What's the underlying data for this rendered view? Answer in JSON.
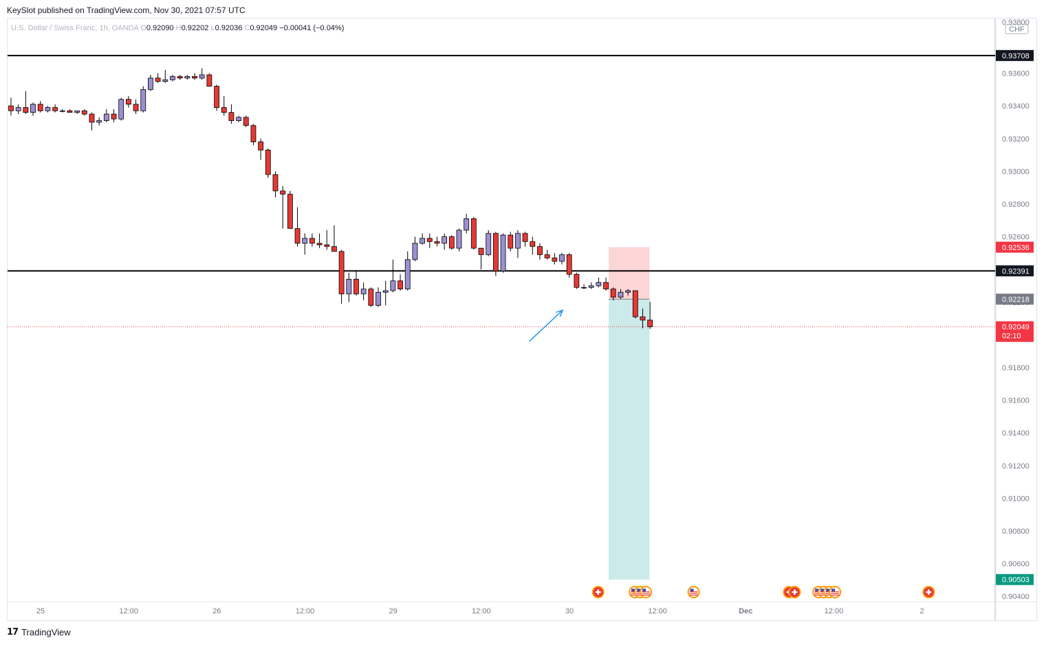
{
  "header": {
    "publisher_text": "KeySlot published on TradingView.com, Nov 30, 2021 07:57 UTC"
  },
  "legend": {
    "symbol": "U.S. Dollar / Swiss Franc, 1h, OANDA",
    "o_label": "O",
    "open": "0.92090",
    "h_label": "H",
    "high": "0.92202",
    "l_label": "L",
    "low": "0.92036",
    "c_label": "C",
    "close": "0.92049",
    "change": "−0.00041 (−0.04%)"
  },
  "footer": {
    "brand": "TradingView",
    "logo_glyph": "17"
  },
  "colors": {
    "up": "#9c8fd1",
    "down": "#e53935",
    "arrow": "#2196f3",
    "stop_zone": "#fcd5d6",
    "target_zone": "#cbeae9",
    "grid_line": "#e0e3eb"
  },
  "chart_data": {
    "type": "candlestick",
    "currency_label": "CHF",
    "ylim": [
      0.904,
      0.939
    ],
    "y_ticks": [
      "0.93600",
      "0.93400",
      "0.93200",
      "0.93000",
      "0.92800",
      "0.92600",
      "0.92400",
      "0.92200",
      "0.92000",
      "0.91800",
      "0.91600",
      "0.91400",
      "0.91200",
      "0.91000",
      "0.90800",
      "0.90600",
      "0.90400"
    ],
    "y_tick_values": [
      0.936,
      0.934,
      0.932,
      0.93,
      0.928,
      0.926,
      0.924,
      0.922,
      0.92,
      0.918,
      0.916,
      0.914,
      0.912,
      0.91,
      0.908,
      0.906,
      0.904
    ],
    "top_partial_tick": "0.93800",
    "x_ticks": [
      {
        "label": "25",
        "slot": 0
      },
      {
        "label": "12:00",
        "slot": 12
      },
      {
        "label": "26",
        "slot": 24
      },
      {
        "label": "12:00",
        "slot": 36
      },
      {
        "label": "29",
        "slot": 48
      },
      {
        "label": "12:00",
        "slot": 60
      },
      {
        "label": "30",
        "slot": 72
      },
      {
        "label": "12:00",
        "slot": 84
      },
      {
        "label": "Dec",
        "slot": 96
      },
      {
        "label": "12:00",
        "slot": 108
      },
      {
        "label": "2",
        "slot": 120
      }
    ],
    "horizontal_lines": [
      {
        "price": 0.93708,
        "label": "0.93708"
      },
      {
        "price": 0.92391,
        "label": "0.92391"
      }
    ],
    "price_labels": [
      {
        "price": 0.92536,
        "label": "0.92536",
        "color": "#f23645"
      },
      {
        "price": 0.92391,
        "label": "0.92391",
        "color": "#131722"
      },
      {
        "price": 0.92218,
        "label": "0.92218",
        "color": "#787b86"
      },
      {
        "price": 0.92049,
        "label": "0.92049",
        "sub": "02:10",
        "color": "#f23645"
      },
      {
        "price": 0.90503,
        "label": "0.90503",
        "color": "#089981"
      }
    ],
    "last_price": 0.92049,
    "position": {
      "entry": 0.92218,
      "stop": 0.92536,
      "target": 0.90503,
      "from_slot": 81,
      "to_slot": 86
    },
    "arrow": {
      "from_slot": 70,
      "from_price": 0.9196,
      "to_slot": 75,
      "to_price": 0.9215
    },
    "events": [
      {
        "slot": 79,
        "flags": [
          "CHF"
        ]
      },
      {
        "slot": 84,
        "flags": [
          "USD",
          "USD",
          "USD"
        ]
      },
      {
        "slot": 92,
        "flags": [
          "USD"
        ]
      },
      {
        "slot": 105,
        "flags": [
          "CHF",
          "CHF"
        ]
      },
      {
        "slot": 109,
        "flags": [
          "USD",
          "USD",
          "USD",
          "USD"
        ]
      },
      {
        "slot": 124,
        "flags": [
          "CHF"
        ]
      }
    ],
    "candles": [
      {
        "o": 0.934,
        "h": 0.9345,
        "l": 0.9334,
        "c": 0.9337
      },
      {
        "o": 0.9337,
        "h": 0.9341,
        "l": 0.9335,
        "c": 0.9339
      },
      {
        "o": 0.9339,
        "h": 0.9349,
        "l": 0.9335,
        "c": 0.9336
      },
      {
        "o": 0.9336,
        "h": 0.9342,
        "l": 0.9334,
        "c": 0.9341
      },
      {
        "o": 0.9341,
        "h": 0.9343,
        "l": 0.9336,
        "c": 0.9337
      },
      {
        "o": 0.9337,
        "h": 0.934,
        "l": 0.9336,
        "c": 0.9339
      },
      {
        "o": 0.9339,
        "h": 0.9341,
        "l": 0.9336,
        "c": 0.9337
      },
      {
        "o": 0.9337,
        "h": 0.9338,
        "l": 0.9336,
        "c": 0.9337
      },
      {
        "o": 0.9337,
        "h": 0.9338,
        "l": 0.9336,
        "c": 0.9336
      },
      {
        "o": 0.9336,
        "h": 0.9337,
        "l": 0.9335,
        "c": 0.9337
      },
      {
        "o": 0.9337,
        "h": 0.9338,
        "l": 0.9334,
        "c": 0.9335
      },
      {
        "o": 0.9335,
        "h": 0.9336,
        "l": 0.9325,
        "c": 0.933
      },
      {
        "o": 0.933,
        "h": 0.9333,
        "l": 0.9328,
        "c": 0.9331
      },
      {
        "o": 0.9331,
        "h": 0.9338,
        "l": 0.933,
        "c": 0.9335
      },
      {
        "o": 0.9335,
        "h": 0.9338,
        "l": 0.933,
        "c": 0.9332
      },
      {
        "o": 0.9332,
        "h": 0.9345,
        "l": 0.9331,
        "c": 0.9344
      },
      {
        "o": 0.9344,
        "h": 0.9346,
        "l": 0.9339,
        "c": 0.9341
      },
      {
        "o": 0.9341,
        "h": 0.9344,
        "l": 0.9335,
        "c": 0.9337
      },
      {
        "o": 0.9337,
        "h": 0.9352,
        "l": 0.9336,
        "c": 0.935
      },
      {
        "o": 0.935,
        "h": 0.9359,
        "l": 0.9349,
        "c": 0.9357
      },
      {
        "o": 0.9357,
        "h": 0.936,
        "l": 0.9354,
        "c": 0.9355
      },
      {
        "o": 0.9355,
        "h": 0.9362,
        "l": 0.9354,
        "c": 0.9356
      },
      {
        "o": 0.9356,
        "h": 0.9359,
        "l": 0.9355,
        "c": 0.9358
      },
      {
        "o": 0.9358,
        "h": 0.9359,
        "l": 0.9356,
        "c": 0.9357
      },
      {
        "o": 0.9357,
        "h": 0.9359,
        "l": 0.9356,
        "c": 0.9358
      },
      {
        "o": 0.9358,
        "h": 0.936,
        "l": 0.9356,
        "c": 0.9357
      },
      {
        "o": 0.9357,
        "h": 0.9363,
        "l": 0.9356,
        "c": 0.9359
      },
      {
        "o": 0.9359,
        "h": 0.936,
        "l": 0.9352,
        "c": 0.9352
      },
      {
        "o": 0.9352,
        "h": 0.9353,
        "l": 0.9337,
        "c": 0.9339
      },
      {
        "o": 0.9339,
        "h": 0.9346,
        "l": 0.9334,
        "c": 0.9336
      },
      {
        "o": 0.9336,
        "h": 0.9341,
        "l": 0.9329,
        "c": 0.9331
      },
      {
        "o": 0.9331,
        "h": 0.9334,
        "l": 0.933,
        "c": 0.9333
      },
      {
        "o": 0.9333,
        "h": 0.9334,
        "l": 0.9327,
        "c": 0.9328
      },
      {
        "o": 0.9328,
        "h": 0.9329,
        "l": 0.9316,
        "c": 0.9318
      },
      {
        "o": 0.9318,
        "h": 0.932,
        "l": 0.9307,
        "c": 0.9313
      },
      {
        "o": 0.9313,
        "h": 0.9314,
        "l": 0.9296,
        "c": 0.9298
      },
      {
        "o": 0.9298,
        "h": 0.93,
        "l": 0.9284,
        "c": 0.9288
      },
      {
        "o": 0.9288,
        "h": 0.9291,
        "l": 0.9265,
        "c": 0.9286
      },
      {
        "o": 0.9286,
        "h": 0.9288,
        "l": 0.9265,
        "c": 0.9265
      },
      {
        "o": 0.9265,
        "h": 0.9278,
        "l": 0.9254,
        "c": 0.9256
      },
      {
        "o": 0.9256,
        "h": 0.9262,
        "l": 0.9249,
        "c": 0.9259
      },
      {
        "o": 0.9259,
        "h": 0.9262,
        "l": 0.9254,
        "c": 0.9256
      },
      {
        "o": 0.9256,
        "h": 0.9262,
        "l": 0.9253,
        "c": 0.9255
      },
      {
        "o": 0.9255,
        "h": 0.9264,
        "l": 0.9252,
        "c": 0.9254
      },
      {
        "o": 0.9254,
        "h": 0.9267,
        "l": 0.9251,
        "c": 0.9251
      },
      {
        "o": 0.9251,
        "h": 0.9252,
        "l": 0.9219,
        "c": 0.9225
      },
      {
        "o": 0.9225,
        "h": 0.9238,
        "l": 0.922,
        "c": 0.9234
      },
      {
        "o": 0.9234,
        "h": 0.9239,
        "l": 0.9224,
        "c": 0.9225
      },
      {
        "o": 0.9225,
        "h": 0.9232,
        "l": 0.9221,
        "c": 0.9228
      },
      {
        "o": 0.9228,
        "h": 0.9229,
        "l": 0.9217,
        "c": 0.9218
      },
      {
        "o": 0.9218,
        "h": 0.9229,
        "l": 0.9217,
        "c": 0.9226
      },
      {
        "o": 0.9226,
        "h": 0.9233,
        "l": 0.9218,
        "c": 0.9227
      },
      {
        "o": 0.9227,
        "h": 0.9246,
        "l": 0.9226,
        "c": 0.9233
      },
      {
        "o": 0.9233,
        "h": 0.9237,
        "l": 0.9227,
        "c": 0.9228
      },
      {
        "o": 0.9228,
        "h": 0.9251,
        "l": 0.9227,
        "c": 0.9246
      },
      {
        "o": 0.9246,
        "h": 0.926,
        "l": 0.9245,
        "c": 0.9256
      },
      {
        "o": 0.9256,
        "h": 0.9262,
        "l": 0.9255,
        "c": 0.9259
      },
      {
        "o": 0.9259,
        "h": 0.9262,
        "l": 0.9253,
        "c": 0.9257
      },
      {
        "o": 0.9257,
        "h": 0.926,
        "l": 0.9254,
        "c": 0.9256
      },
      {
        "o": 0.9256,
        "h": 0.9262,
        "l": 0.9252,
        "c": 0.926
      },
      {
        "o": 0.926,
        "h": 0.9261,
        "l": 0.9252,
        "c": 0.9253
      },
      {
        "o": 0.9253,
        "h": 0.9265,
        "l": 0.9251,
        "c": 0.9264
      },
      {
        "o": 0.9264,
        "h": 0.9274,
        "l": 0.9262,
        "c": 0.9271
      },
      {
        "o": 0.9271,
        "h": 0.9272,
        "l": 0.9252,
        "c": 0.9253
      },
      {
        "o": 0.9253,
        "h": 0.9253,
        "l": 0.924,
        "c": 0.9249
      },
      {
        "o": 0.9249,
        "h": 0.9264,
        "l": 0.9248,
        "c": 0.9262
      },
      {
        "o": 0.9262,
        "h": 0.9263,
        "l": 0.9236,
        "c": 0.9239
      },
      {
        "o": 0.9239,
        "h": 0.9262,
        "l": 0.9238,
        "c": 0.9261
      },
      {
        "o": 0.9261,
        "h": 0.9263,
        "l": 0.9251,
        "c": 0.9253
      },
      {
        "o": 0.9253,
        "h": 0.9264,
        "l": 0.9247,
        "c": 0.9262
      },
      {
        "o": 0.9262,
        "h": 0.9263,
        "l": 0.9254,
        "c": 0.9257
      },
      {
        "o": 0.9257,
        "h": 0.926,
        "l": 0.9249,
        "c": 0.9254
      },
      {
        "o": 0.9254,
        "h": 0.9256,
        "l": 0.9246,
        "c": 0.9249
      },
      {
        "o": 0.9249,
        "h": 0.9252,
        "l": 0.9246,
        "c": 0.9247
      },
      {
        "o": 0.9247,
        "h": 0.925,
        "l": 0.9243,
        "c": 0.9245
      },
      {
        "o": 0.9245,
        "h": 0.925,
        "l": 0.9243,
        "c": 0.9249
      },
      {
        "o": 0.9249,
        "h": 0.925,
        "l": 0.9235,
        "c": 0.9237
      },
      {
        "o": 0.9237,
        "h": 0.9238,
        "l": 0.9228,
        "c": 0.9229
      },
      {
        "o": 0.9229,
        "h": 0.9231,
        "l": 0.9228,
        "c": 0.9229
      },
      {
        "o": 0.9229,
        "h": 0.9232,
        "l": 0.9228,
        "c": 0.923
      },
      {
        "o": 0.923,
        "h": 0.9235,
        "l": 0.9229,
        "c": 0.9232
      },
      {
        "o": 0.9232,
        "h": 0.9235,
        "l": 0.9227,
        "c": 0.9228
      },
      {
        "o": 0.9228,
        "h": 0.9229,
        "l": 0.9221,
        "c": 0.9223
      },
      {
        "o": 0.9223,
        "h": 0.9228,
        "l": 0.9222,
        "c": 0.9226
      },
      {
        "o": 0.9226,
        "h": 0.9228,
        "l": 0.9224,
        "c": 0.9227
      },
      {
        "o": 0.9227,
        "h": 0.9227,
        "l": 0.921,
        "c": 0.9211
      },
      {
        "o": 0.9211,
        "h": 0.9216,
        "l": 0.9204,
        "c": 0.9209
      },
      {
        "o": 0.9209,
        "h": 0.92202,
        "l": 0.92036,
        "c": 0.92049
      }
    ]
  }
}
